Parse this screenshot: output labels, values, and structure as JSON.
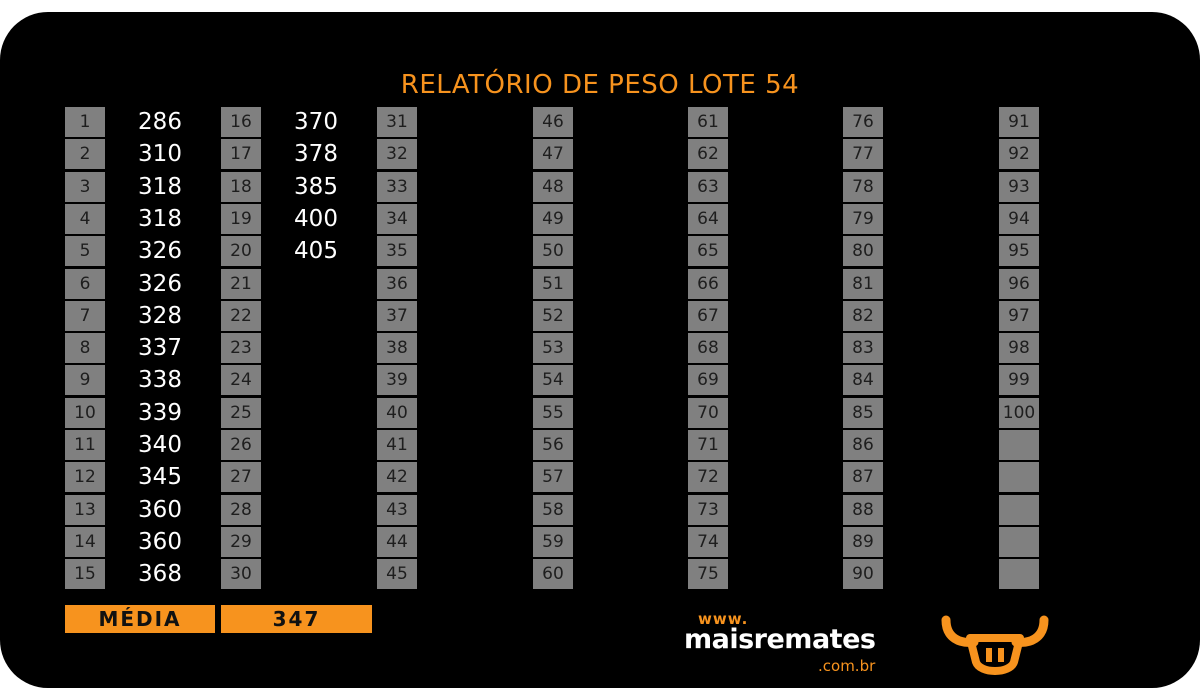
{
  "title": "RELATÓRIO DE PESO LOTE 54",
  "columns": [
    {
      "rows": [
        {
          "n": "1",
          "v": "286"
        },
        {
          "n": "2",
          "v": "310"
        },
        {
          "n": "3",
          "v": "318"
        },
        {
          "n": "4",
          "v": "318"
        },
        {
          "n": "5",
          "v": "326"
        },
        {
          "n": "6",
          "v": "326"
        },
        {
          "n": "7",
          "v": "328"
        },
        {
          "n": "8",
          "v": "337"
        },
        {
          "n": "9",
          "v": "338"
        },
        {
          "n": "10",
          "v": "339"
        },
        {
          "n": "11",
          "v": "340"
        },
        {
          "n": "12",
          "v": "345"
        },
        {
          "n": "13",
          "v": "360"
        },
        {
          "n": "14",
          "v": "360"
        },
        {
          "n": "15",
          "v": "368"
        }
      ]
    },
    {
      "rows": [
        {
          "n": "16",
          "v": "370"
        },
        {
          "n": "17",
          "v": "378"
        },
        {
          "n": "18",
          "v": "385"
        },
        {
          "n": "19",
          "v": "400"
        },
        {
          "n": "20",
          "v": "405"
        },
        {
          "n": "21",
          "v": ""
        },
        {
          "n": "22",
          "v": ""
        },
        {
          "n": "23",
          "v": ""
        },
        {
          "n": "24",
          "v": ""
        },
        {
          "n": "25",
          "v": ""
        },
        {
          "n": "26",
          "v": ""
        },
        {
          "n": "27",
          "v": ""
        },
        {
          "n": "28",
          "v": ""
        },
        {
          "n": "29",
          "v": ""
        },
        {
          "n": "30",
          "v": ""
        }
      ]
    },
    {
      "rows": [
        {
          "n": "31",
          "v": ""
        },
        {
          "n": "32",
          "v": ""
        },
        {
          "n": "33",
          "v": ""
        },
        {
          "n": "34",
          "v": ""
        },
        {
          "n": "35",
          "v": ""
        },
        {
          "n": "36",
          "v": ""
        },
        {
          "n": "37",
          "v": ""
        },
        {
          "n": "38",
          "v": ""
        },
        {
          "n": "39",
          "v": ""
        },
        {
          "n": "40",
          "v": ""
        },
        {
          "n": "41",
          "v": ""
        },
        {
          "n": "42",
          "v": ""
        },
        {
          "n": "43",
          "v": ""
        },
        {
          "n": "44",
          "v": ""
        },
        {
          "n": "45",
          "v": ""
        }
      ]
    },
    {
      "rows": [
        {
          "n": "46",
          "v": ""
        },
        {
          "n": "47",
          "v": ""
        },
        {
          "n": "48",
          "v": ""
        },
        {
          "n": "49",
          "v": ""
        },
        {
          "n": "50",
          "v": ""
        },
        {
          "n": "51",
          "v": ""
        },
        {
          "n": "52",
          "v": ""
        },
        {
          "n": "53",
          "v": ""
        },
        {
          "n": "54",
          "v": ""
        },
        {
          "n": "55",
          "v": ""
        },
        {
          "n": "56",
          "v": ""
        },
        {
          "n": "57",
          "v": ""
        },
        {
          "n": "58",
          "v": ""
        },
        {
          "n": "59",
          "v": ""
        },
        {
          "n": "60",
          "v": ""
        }
      ]
    },
    {
      "rows": [
        {
          "n": "61",
          "v": ""
        },
        {
          "n": "62",
          "v": ""
        },
        {
          "n": "63",
          "v": ""
        },
        {
          "n": "64",
          "v": ""
        },
        {
          "n": "65",
          "v": ""
        },
        {
          "n": "66",
          "v": ""
        },
        {
          "n": "67",
          "v": ""
        },
        {
          "n": "68",
          "v": ""
        },
        {
          "n": "69",
          "v": ""
        },
        {
          "n": "70",
          "v": ""
        },
        {
          "n": "71",
          "v": ""
        },
        {
          "n": "72",
          "v": ""
        },
        {
          "n": "73",
          "v": ""
        },
        {
          "n": "74",
          "v": ""
        },
        {
          "n": "75",
          "v": ""
        }
      ]
    },
    {
      "rows": [
        {
          "n": "76",
          "v": ""
        },
        {
          "n": "77",
          "v": ""
        },
        {
          "n": "78",
          "v": ""
        },
        {
          "n": "79",
          "v": ""
        },
        {
          "n": "80",
          "v": ""
        },
        {
          "n": "81",
          "v": ""
        },
        {
          "n": "82",
          "v": ""
        },
        {
          "n": "83",
          "v": ""
        },
        {
          "n": "84",
          "v": ""
        },
        {
          "n": "85",
          "v": ""
        },
        {
          "n": "86",
          "v": ""
        },
        {
          "n": "87",
          "v": ""
        },
        {
          "n": "88",
          "v": ""
        },
        {
          "n": "89",
          "v": ""
        },
        {
          "n": "90",
          "v": ""
        }
      ]
    },
    {
      "rows": [
        {
          "n": "91",
          "v": ""
        },
        {
          "n": "92",
          "v": ""
        },
        {
          "n": "93",
          "v": ""
        },
        {
          "n": "94",
          "v": ""
        },
        {
          "n": "95",
          "v": ""
        },
        {
          "n": "96",
          "v": ""
        },
        {
          "n": "97",
          "v": ""
        },
        {
          "n": "98",
          "v": ""
        },
        {
          "n": "99",
          "v": ""
        },
        {
          "n": "100",
          "v": ""
        },
        {
          "n": "",
          "v": ""
        },
        {
          "n": "",
          "v": ""
        },
        {
          "n": "",
          "v": ""
        },
        {
          "n": "",
          "v": ""
        },
        {
          "n": "",
          "v": ""
        }
      ]
    }
  ],
  "media": {
    "label": "MÉDIA",
    "value": "347"
  },
  "logo": {
    "www": "www.",
    "brand": "maisremates",
    "domain": ".com.br"
  },
  "colors": {
    "accent": "#f7931e",
    "cell": "#808080",
    "background": "#000000"
  },
  "icons": {
    "bull": "bull-head-icon"
  }
}
